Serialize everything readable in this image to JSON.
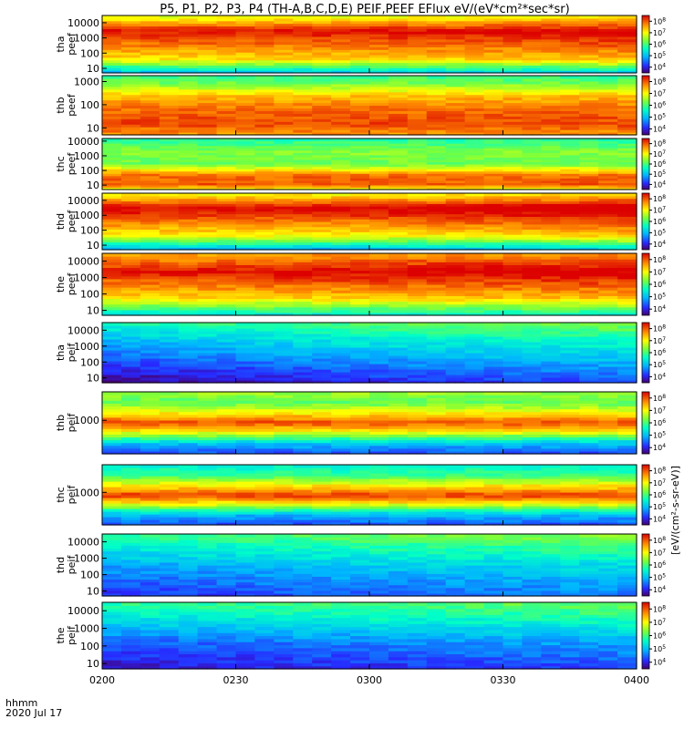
{
  "chart_data": {
    "type": "heatmap",
    "title": "P5, P1, P2, P3, P4 (TH-A,B,C,D,E) PEIF,PEEF EFlux eV/(eV*cm²*sec*sr)",
    "time_axis": {
      "ticks": [
        "0200",
        "0230",
        "0300",
        "0330",
        "0400"
      ],
      "label_top": "hhmm",
      "label_bottom": "2020 Jul 17",
      "range": [
        "02:00",
        "04:00"
      ]
    },
    "colorbar": {
      "label": "[eV/(cm²-s-sr-eV)]",
      "colormap": "rainbow",
      "scale": "log",
      "tick_exponents": [
        4,
        5,
        6,
        7,
        8
      ]
    },
    "panels": [
      {
        "probe": "tha",
        "product": "peef",
        "yscale": "log",
        "ylim": [
          5,
          30000
        ],
        "yticks": [
          "10",
          "100",
          "1000",
          "10000"
        ],
        "spectrum": [
          {
            "e": 5,
            "v": 2.0
          },
          {
            "e": 40,
            "v": 5.6
          },
          {
            "e": 3000,
            "v": 7.6
          },
          {
            "e": 30000,
            "v": 5.0
          }
        ],
        "trend": [
          {
            "t": 0,
            "d": 0.2
          },
          {
            "t": 0.7,
            "d": 0.4
          },
          {
            "t": 1,
            "d": 0.6
          }
        ]
      },
      {
        "probe": "thb",
        "product": "peef",
        "yscale": "log",
        "ylim": [
          5,
          1800
        ],
        "yticks": [
          "10",
          "100",
          "1000"
        ],
        "spectrum": [
          {
            "e": 5,
            "v": 6.5
          },
          {
            "e": 15,
            "v": 7.4
          },
          {
            "e": 70,
            "v": 7.0
          },
          {
            "e": 250,
            "v": 6.2
          },
          {
            "e": 800,
            "v": 4.5
          },
          {
            "e": 1800,
            "v": 3.8
          }
        ],
        "trend": [
          {
            "t": 0,
            "d": 0
          },
          {
            "t": 1,
            "d": 0
          }
        ]
      },
      {
        "probe": "thc",
        "product": "peef",
        "yscale": "log",
        "ylim": [
          5,
          15000
        ],
        "yticks": [
          "10",
          "100",
          "1000",
          "10000"
        ],
        "spectrum": [
          {
            "e": 5,
            "v": 5.4
          },
          {
            "e": 12,
            "v": 7.2
          },
          {
            "e": 50,
            "v": 7.0
          },
          {
            "e": 300,
            "v": 4.3
          },
          {
            "e": 2000,
            "v": 4.6
          },
          {
            "e": 15000,
            "v": 3.6
          }
        ],
        "trend": [
          {
            "t": 0,
            "d": 0
          },
          {
            "t": 1,
            "d": 0
          }
        ]
      },
      {
        "probe": "thd",
        "product": "peef",
        "yscale": "log",
        "ylim": [
          5,
          30000
        ],
        "yticks": [
          "10",
          "100",
          "1000",
          "10000"
        ],
        "spectrum": [
          {
            "e": 5,
            "v": 1.8
          },
          {
            "e": 50,
            "v": 5.4
          },
          {
            "e": 3000,
            "v": 7.8
          },
          {
            "e": 30000,
            "v": 5.2
          }
        ],
        "trend": [
          {
            "t": 0,
            "d": 0.3
          },
          {
            "t": 0.5,
            "d": 0.3
          },
          {
            "t": 1,
            "d": 0.8
          }
        ]
      },
      {
        "probe": "the",
        "product": "peef",
        "yscale": "log",
        "ylim": [
          5,
          30000
        ],
        "yticks": [
          "10",
          "100",
          "1000",
          "10000"
        ],
        "spectrum": [
          {
            "e": 5,
            "v": 2.5
          },
          {
            "e": 60,
            "v": 5.6
          },
          {
            "e": 2500,
            "v": 7.6
          },
          {
            "e": 30000,
            "v": 6.0
          }
        ],
        "trend": [
          {
            "t": 0,
            "d": 0.2
          },
          {
            "t": 0.5,
            "d": 0.5
          },
          {
            "t": 1,
            "d": 0.6
          }
        ]
      },
      {
        "probe": "tha",
        "product": "peif",
        "yscale": "log",
        "ylim": [
          5,
          30000
        ],
        "yticks": [
          "10",
          "100",
          "1000",
          "10000"
        ],
        "spectrum": [
          {
            "e": 5,
            "v": 0.5
          },
          {
            "e": 100,
            "v": 1.6
          },
          {
            "e": 2000,
            "v": 2.7
          },
          {
            "e": 15000,
            "v": 3.5
          },
          {
            "e": 30000,
            "v": 3.9
          }
        ],
        "trend": [
          {
            "t": 0,
            "d": -0.4
          },
          {
            "t": 0.5,
            "d": 0.3
          },
          {
            "t": 1,
            "d": 0.7
          }
        ]
      },
      {
        "probe": "thb",
        "product": "peif",
        "yscale": "log",
        "ylim": [
          150,
          5000
        ],
        "yticks": [
          "1000"
        ],
        "spectrum": [
          {
            "e": 150,
            "v": 1.2
          },
          {
            "e": 280,
            "v": 2.5
          },
          {
            "e": 550,
            "v": 5.8
          },
          {
            "e": 900,
            "v": 7.3
          },
          {
            "e": 1500,
            "v": 5.8
          },
          {
            "e": 2800,
            "v": 4.2
          },
          {
            "e": 5000,
            "v": 4.8
          }
        ],
        "trend": [
          {
            "t": 0,
            "d": 0
          },
          {
            "t": 1,
            "d": 0
          }
        ]
      },
      {
        "probe": "thc",
        "product": "peif",
        "yscale": "log",
        "ylim": [
          150,
          5000
        ],
        "yticks": [
          "1000"
        ],
        "spectrum": [
          {
            "e": 150,
            "v": 1.2
          },
          {
            "e": 280,
            "v": 2.4
          },
          {
            "e": 550,
            "v": 5.8
          },
          {
            "e": 850,
            "v": 7.5
          },
          {
            "e": 1500,
            "v": 5.8
          },
          {
            "e": 2800,
            "v": 3.8
          },
          {
            "e": 5000,
            "v": 3.2
          }
        ],
        "trend": [
          {
            "t": 0,
            "d": 0
          },
          {
            "t": 1,
            "d": 0
          }
        ]
      },
      {
        "probe": "thd",
        "product": "peif",
        "yscale": "log",
        "ylim": [
          5,
          30000
        ],
        "yticks": [
          "10",
          "100",
          "1000",
          "10000"
        ],
        "spectrum": [
          {
            "e": 5,
            "v": 1.2
          },
          {
            "e": 300,
            "v": 2.3
          },
          {
            "e": 5000,
            "v": 3.4
          },
          {
            "e": 30000,
            "v": 4.1
          }
        ],
        "trend": [
          {
            "t": 0,
            "d": -0.3
          },
          {
            "t": 0.5,
            "d": 0.2
          },
          {
            "t": 1,
            "d": 0.5
          }
        ]
      },
      {
        "probe": "the",
        "product": "peif",
        "yscale": "log",
        "ylim": [
          5,
          30000
        ],
        "yticks": [
          "10",
          "100",
          "1000",
          "10000"
        ],
        "spectrum": [
          {
            "e": 5,
            "v": 0.8
          },
          {
            "e": 200,
            "v": 1.8
          },
          {
            "e": 4000,
            "v": 3.2
          },
          {
            "e": 30000,
            "v": 4.0
          }
        ],
        "trend": [
          {
            "t": 0,
            "d": -0.3
          },
          {
            "t": 0.5,
            "d": 0.1
          },
          {
            "t": 1,
            "d": 0.4
          }
        ]
      }
    ]
  }
}
